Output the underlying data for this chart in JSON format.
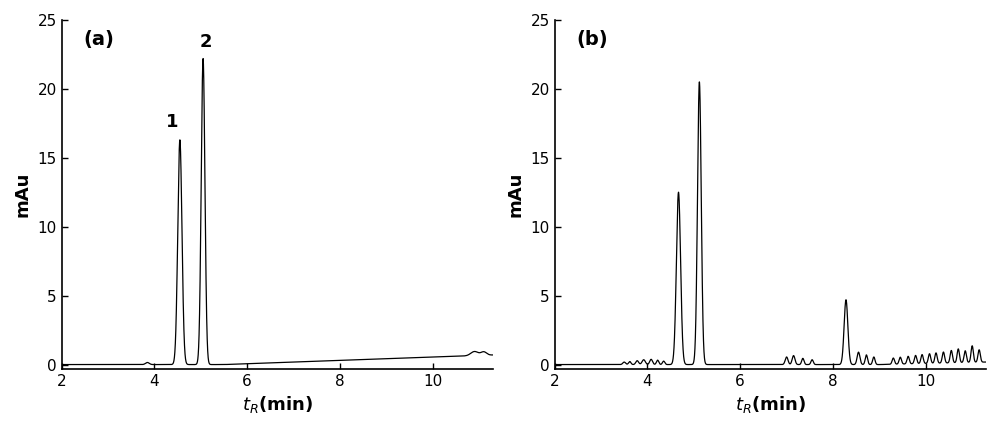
{
  "title_a": "(a)",
  "title_b": "(b)",
  "ylabel": "mAu",
  "xlim": [
    2,
    11.3
  ],
  "ylim_a": [
    -0.3,
    25
  ],
  "ylim_b": [
    -0.3,
    25
  ],
  "yticks": [
    0,
    5,
    10,
    15,
    20,
    25
  ],
  "xticks": [
    2,
    4,
    6,
    8,
    10
  ],
  "bg_color": "#ffffff",
  "line_color": "#000000",
  "tick_fontsize": 11,
  "axis_label_fontsize": 13,
  "panel_fontsize": 14,
  "peak_label_fontsize": 13
}
